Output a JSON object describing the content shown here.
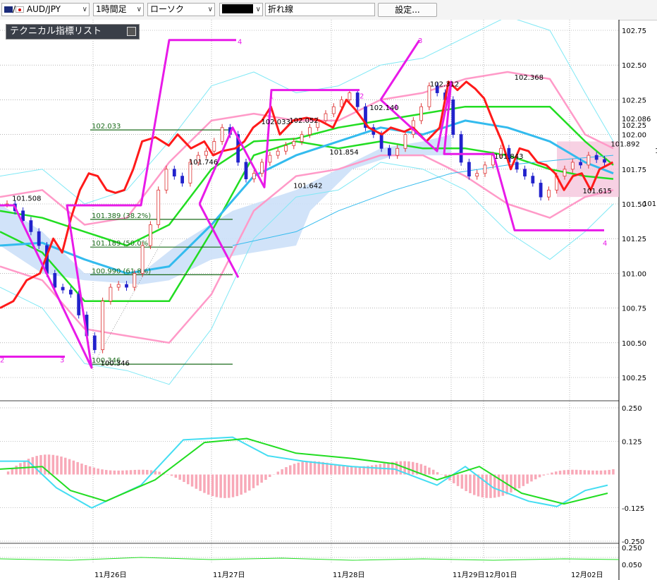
{
  "toolbar": {
    "symbol": "AUD/JPY",
    "timeframe": "1時間足",
    "chart_type": "ローソク",
    "color_box": "",
    "line_tool": "折れ線",
    "settings_button": "設定..."
  },
  "indicator_panel": {
    "title": "テクニカル指標リスト"
  },
  "colors": {
    "price_line": "#ff1a1a",
    "zigzag": "#e81ae8",
    "bollinger_outer": "#7fe8f5",
    "bollinger_inner": "#ff9ac8",
    "ma_green": "#22dd22",
    "ma_blue": "#33bbee",
    "cloud": "#cce0f8",
    "fib": "#1b6b1b"
  },
  "chart_data": {
    "type": "line",
    "main": {
      "y_axis_ticks": [
        "102.75",
        "102.50",
        "102.25",
        "102.00",
        "101.75",
        "101.50",
        "101.25",
        "101.00",
        "100.75",
        "100.50",
        "100.25"
      ],
      "x_axis_labels": [
        "11月26日",
        "11月27日",
        "11月28日",
        "11月29日",
        "12月01日",
        "12月02日"
      ],
      "current_price_labels": [
        "102.086",
        "102.25"
      ],
      "price_annotations": [
        {
          "label": "101.508",
          "x": 3,
          "price": 101.508
        },
        {
          "label": "100.346",
          "x": 25,
          "price": 100.32
        },
        {
          "label": "101.746",
          "x": 47,
          "price": 101.77
        },
        {
          "label": "102.033",
          "x": 65,
          "price": 102.06
        },
        {
          "label": "102.052",
          "x": 72,
          "price": 102.07
        },
        {
          "label": "101.642",
          "x": 73,
          "price": 101.6
        },
        {
          "label": "101.854",
          "x": 82,
          "price": 101.84
        },
        {
          "label": "102.140",
          "x": 92,
          "price": 102.16
        },
        {
          "label": "102.312",
          "x": 107,
          "price": 102.33
        },
        {
          "label": "101.843",
          "x": 123,
          "price": 101.81
        },
        {
          "label": "102.368",
          "x": 128,
          "price": 102.38
        },
        {
          "label": "101.892",
          "x": 152,
          "price": 101.9
        },
        {
          "label": "101.615",
          "x": 145,
          "price": 101.56
        },
        {
          "label": "101.838",
          "x": 163,
          "price": 101.85
        },
        {
          "label": "101.512",
          "x": 160,
          "price": 101.47
        }
      ],
      "fibonacci": [
        {
          "label": "102.033",
          "price": 102.033
        },
        {
          "label": "101.389 (38.2%)",
          "price": 101.389
        },
        {
          "label": "101.189 (50.0%)",
          "price": 101.189
        },
        {
          "label": "100.990 (61.8%)",
          "price": 100.99
        },
        {
          "label": "100.346",
          "price": 100.346
        }
      ],
      "zigzag_numbers": [
        "2",
        "3",
        "4",
        "1",
        "2",
        "4",
        "3",
        "4"
      ],
      "price_line": [
        [
          0,
          100.75
        ],
        [
          3,
          100.8
        ],
        [
          6,
          100.95
        ],
        [
          9,
          101.0
        ],
        [
          12,
          101.25
        ],
        [
          14,
          101.15
        ],
        [
          16,
          101.4
        ],
        [
          18,
          101.6
        ],
        [
          20,
          101.72
        ],
        [
          22,
          101.7
        ],
        [
          24,
          101.6
        ],
        [
          26,
          101.58
        ],
        [
          28,
          101.6
        ],
        [
          30,
          101.75
        ],
        [
          32,
          101.95
        ],
        [
          35,
          101.98
        ],
        [
          38,
          101.92
        ],
        [
          40,
          102.0
        ],
        [
          43,
          101.9
        ],
        [
          46,
          101.95
        ],
        [
          48,
          101.85
        ],
        [
          50,
          101.88
        ],
        [
          53,
          101.9
        ],
        [
          55,
          101.95
        ],
        [
          57,
          102.05
        ],
        [
          59,
          102.1
        ],
        [
          61,
          102.2
        ],
        [
          63,
          102.0
        ],
        [
          66,
          102.1
        ],
        [
          69,
          102.12
        ],
        [
          72,
          102.1
        ],
        [
          75,
          102.05
        ],
        [
          78,
          102.25
        ],
        [
          80,
          102.18
        ],
        [
          83,
          102.05
        ],
        [
          86,
          102.0
        ],
        [
          88,
          102.05
        ],
        [
          91,
          102.02
        ],
        [
          93,
          102.05
        ],
        [
          96,
          101.95
        ],
        [
          99,
          102.05
        ],
        [
          101,
          102.38
        ],
        [
          103,
          102.32
        ],
        [
          105,
          102.38
        ],
        [
          107,
          102.33
        ],
        [
          109,
          102.26
        ],
        [
          111,
          102.1
        ],
        [
          113,
          101.95
        ],
        [
          115,
          101.75
        ],
        [
          117,
          101.9
        ],
        [
          119,
          101.88
        ],
        [
          121,
          101.8
        ],
        [
          123,
          101.78
        ],
        [
          125,
          101.72
        ],
        [
          127,
          101.6
        ],
        [
          129,
          101.7
        ],
        [
          131,
          101.72
        ],
        [
          133,
          101.6
        ],
        [
          135,
          101.75
        ],
        [
          138,
          101.8
        ]
      ],
      "candles_close": [
        101.5,
        101.45,
        101.38,
        101.3,
        101.2,
        101.0,
        100.9,
        100.88,
        100.85,
        100.7,
        100.55,
        100.45,
        100.8,
        100.9,
        100.92,
        100.9,
        101.0,
        101.2,
        101.35,
        101.6,
        101.75,
        101.7,
        101.65,
        101.8,
        101.85,
        101.88,
        101.95,
        102.05,
        102.0,
        101.8,
        101.68,
        101.72,
        101.8,
        101.85,
        101.88,
        101.92,
        101.95,
        102.0,
        102.05,
        102.1,
        102.15,
        102.2,
        102.25,
        102.3,
        102.2,
        102.05,
        102.0,
        101.9,
        101.85,
        101.9,
        102.0,
        102.1,
        102.2,
        102.35,
        102.3,
        102.25,
        102.0,
        101.8,
        101.7,
        101.72,
        101.78,
        101.85,
        101.9,
        101.8,
        101.75,
        101.7,
        101.65,
        101.55,
        101.6,
        101.7,
        101.75,
        101.8,
        101.78,
        101.85,
        101.82,
        101.8
      ]
    },
    "oscillator": {
      "y_axis_ticks": [
        "0.250",
        "0.125",
        "-0.125",
        "-0.250"
      ]
    },
    "sub_indicator": {
      "y_axis_ticks": [
        "0.250",
        "0.050"
      ]
    }
  }
}
